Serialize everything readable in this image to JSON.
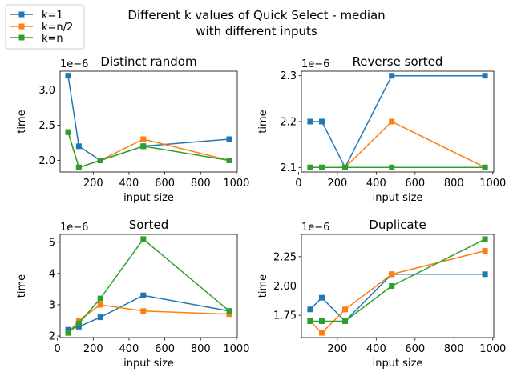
{
  "figure_title_lines": [
    "Different k values of Quick Select - median",
    "with different inputs"
  ],
  "legend": [
    {
      "label": "k=1",
      "color": "#1f77b4"
    },
    {
      "label": "k=n/2",
      "color": "#ff7f0e"
    },
    {
      "label": "k=n",
      "color": "#2ca02c"
    }
  ],
  "chart_data": [
    {
      "type": "line",
      "title": "Distinct random",
      "xlabel": "input size",
      "ylabel": "time",
      "offset_text": "1e−6",
      "x": [
        60,
        120,
        240,
        480,
        960
      ],
      "series": [
        {
          "name": "k=1",
          "color": "#1f77b4",
          "values": [
            3.2,
            2.2,
            2.0,
            2.2,
            2.3
          ]
        },
        {
          "name": "k=n/2",
          "color": "#ff7f0e",
          "values": [
            2.4,
            1.9,
            2.0,
            2.3,
            2.0
          ]
        },
        {
          "name": "k=n",
          "color": "#2ca02c",
          "values": [
            2.4,
            1.9,
            2.0,
            2.2,
            2.0
          ]
        }
      ],
      "xlim": [
        15,
        1005
      ],
      "ylim": [
        1.835,
        3.265
      ],
      "xticks": [
        200,
        400,
        600,
        800,
        1000
      ],
      "xtick_labels": [
        "200",
        "400",
        "600",
        "800",
        "1000"
      ],
      "yticks": [
        2.0,
        2.5,
        3.0
      ],
      "ytick_labels": [
        "2.0",
        "2.5",
        "3.0"
      ]
    },
    {
      "type": "line",
      "title": "Reverse sorted",
      "xlabel": "input size",
      "ylabel": "time",
      "offset_text": "1e−6",
      "x": [
        60,
        120,
        240,
        480,
        960
      ],
      "series": [
        {
          "name": "k=1",
          "color": "#1f77b4",
          "values": [
            2.2,
            2.2,
            2.1,
            2.3,
            2.3
          ]
        },
        {
          "name": "k=n/2",
          "color": "#ff7f0e",
          "values": [
            2.1,
            2.1,
            2.1,
            2.2,
            2.1
          ]
        },
        {
          "name": "k=n",
          "color": "#2ca02c",
          "values": [
            2.1,
            2.1,
            2.1,
            2.1,
            2.1
          ]
        }
      ],
      "xlim": [
        15,
        1005
      ],
      "ylim": [
        2.09,
        2.31
      ],
      "xticks": [
        0,
        200,
        400,
        600,
        800,
        1000
      ],
      "xtick_labels": [
        "0",
        "200",
        "400",
        "600",
        "800",
        "1000"
      ],
      "yticks": [
        2.1,
        2.2,
        2.3
      ],
      "ytick_labels": [
        "2.1",
        "2.2",
        "2.3"
      ]
    },
    {
      "type": "line",
      "title": "Sorted",
      "xlabel": "input size",
      "ylabel": "time",
      "offset_text": "1e−6",
      "x": [
        60,
        120,
        240,
        480,
        960
      ],
      "series": [
        {
          "name": "k=1",
          "color": "#1f77b4",
          "values": [
            2.2,
            2.3,
            2.6,
            3.3,
            2.8
          ]
        },
        {
          "name": "k=n/2",
          "color": "#ff7f0e",
          "values": [
            2.1,
            2.5,
            3.0,
            2.8,
            2.7
          ]
        },
        {
          "name": "k=n",
          "color": "#2ca02c",
          "values": [
            2.1,
            2.4,
            3.2,
            5.1,
            2.8
          ]
        }
      ],
      "xlim": [
        15,
        1005
      ],
      "ylim": [
        1.95,
        5.25
      ],
      "xticks": [
        0,
        200,
        400,
        600,
        800,
        1000
      ],
      "xtick_labels": [
        "0",
        "200",
        "400",
        "600",
        "800",
        "1000"
      ],
      "yticks": [
        2,
        3,
        4,
        5
      ],
      "ytick_labels": [
        "2",
        "3",
        "4",
        "5"
      ]
    },
    {
      "type": "line",
      "title": "Duplicate",
      "xlabel": "input size",
      "ylabel": "time",
      "offset_text": "1e−6",
      "x": [
        60,
        120,
        240,
        480,
        960
      ],
      "series": [
        {
          "name": "k=1",
          "color": "#1f77b4",
          "values": [
            1.8,
            1.9,
            1.7,
            2.1,
            2.1
          ]
        },
        {
          "name": "k=n/2",
          "color": "#ff7f0e",
          "values": [
            1.7,
            1.6,
            1.8,
            2.1,
            2.3
          ]
        },
        {
          "name": "k=n",
          "color": "#2ca02c",
          "values": [
            1.7,
            1.7,
            1.7,
            2.0,
            2.4
          ]
        }
      ],
      "xlim": [
        15,
        1005
      ],
      "ylim": [
        1.56,
        2.44
      ],
      "xticks": [
        200,
        400,
        600,
        800,
        1000
      ],
      "xtick_labels": [
        "200",
        "400",
        "600",
        "800",
        "1000"
      ],
      "yticks": [
        1.75,
        2.0,
        2.25
      ],
      "ytick_labels": [
        "1.75",
        "2.00",
        "2.25"
      ]
    }
  ]
}
